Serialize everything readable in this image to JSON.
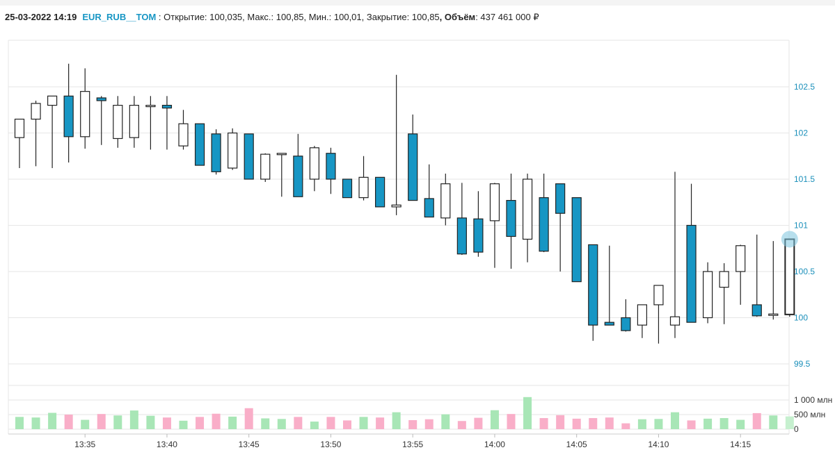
{
  "header": {
    "datetime": "25-03-2022 14:19",
    "symbol": "EUR_RUB__TOM",
    "sep": " : ",
    "open_label": "Открытие: ",
    "open": "100,035",
    "high_label": ", Макс.: ",
    "high": "100,85",
    "low_label": ", Мин.: ",
    "low": "100,01",
    "close_label": ", Закрытие: ",
    "close": "100,85",
    "volume_label": ", Объём",
    "volume_sep": ": ",
    "volume": "437 461 000 ₽"
  },
  "colors": {
    "bear_fill": "#1796c4",
    "bull_fill": "#ffffff",
    "candle_stroke": "#222222",
    "vol_up": "#a8e6b6",
    "vol_down": "#f9aec8",
    "vol_last": "#c6f0cf",
    "grid": "#e6e6e6",
    "axis_text": "#1a8fba",
    "highlight": "#7cc4de"
  },
  "chart_data": {
    "type": "candlestick",
    "y_ticks": [
      "102.5",
      "102",
      "101.5",
      "101",
      "100.5",
      "100",
      "99.5"
    ],
    "y_tick_values": [
      102.5,
      102,
      101.5,
      101,
      100.5,
      100,
      99.5
    ],
    "ylim": [
      99.25,
      103.0
    ],
    "x_ticks": [
      "13:35",
      "13:40",
      "13:45",
      "13:50",
      "13:55",
      "14:00",
      "14:05",
      "14:10",
      "14:15"
    ],
    "volume_ticks": [
      "1 000 млн",
      "500 млн",
      "0"
    ],
    "volume_tick_values": [
      1000,
      500,
      0
    ],
    "volume_ylim": [
      0,
      1200
    ],
    "time_start": "13:31",
    "candles": [
      {
        "o": 101.95,
        "h": 102.15,
        "l": 101.62,
        "c": 102.15,
        "v": 420,
        "up": true
      },
      {
        "o": 102.15,
        "h": 102.35,
        "l": 101.64,
        "c": 102.32,
        "v": 400,
        "up": true
      },
      {
        "o": 102.3,
        "h": 102.4,
        "l": 101.62,
        "c": 102.4,
        "v": 560,
        "up": true
      },
      {
        "o": 102.4,
        "h": 102.75,
        "l": 101.68,
        "c": 101.96,
        "v": 500,
        "up": false
      },
      {
        "o": 101.96,
        "h": 102.7,
        "l": 101.83,
        "c": 102.45,
        "v": 320,
        "up": true
      },
      {
        "o": 102.38,
        "h": 102.4,
        "l": 101.87,
        "c": 102.35,
        "v": 520,
        "up": false
      },
      {
        "o": 101.94,
        "h": 102.4,
        "l": 101.84,
        "c": 102.3,
        "v": 470,
        "up": true
      },
      {
        "o": 101.95,
        "h": 102.4,
        "l": 101.84,
        "c": 102.3,
        "v": 640,
        "up": true
      },
      {
        "o": 102.3,
        "h": 102.4,
        "l": 101.82,
        "c": 102.3,
        "v": 460,
        "up": true
      },
      {
        "o": 102.3,
        "h": 102.4,
        "l": 101.82,
        "c": 102.27,
        "v": 400,
        "up": false
      },
      {
        "o": 101.86,
        "h": 102.25,
        "l": 101.82,
        "c": 102.1,
        "v": 290,
        "up": true
      },
      {
        "o": 102.1,
        "h": 102.1,
        "l": 101.65,
        "c": 101.65,
        "v": 420,
        "up": false
      },
      {
        "o": 101.99,
        "h": 102.04,
        "l": 101.55,
        "c": 101.58,
        "v": 530,
        "up": false
      },
      {
        "o": 101.62,
        "h": 102.05,
        "l": 101.6,
        "c": 102.0,
        "v": 430,
        "up": true
      },
      {
        "o": 101.99,
        "h": 101.99,
        "l": 101.5,
        "c": 101.5,
        "v": 720,
        "up": false
      },
      {
        "o": 101.5,
        "h": 101.78,
        "l": 101.47,
        "c": 101.77,
        "v": 370,
        "up": true
      },
      {
        "o": 101.78,
        "h": 101.78,
        "l": 101.31,
        "c": 101.77,
        "v": 350,
        "up": true
      },
      {
        "o": 101.75,
        "h": 101.99,
        "l": 101.31,
        "c": 101.31,
        "v": 420,
        "up": false
      },
      {
        "o": 101.5,
        "h": 101.86,
        "l": 101.37,
        "c": 101.84,
        "v": 260,
        "up": true
      },
      {
        "o": 101.78,
        "h": 101.84,
        "l": 101.34,
        "c": 101.5,
        "v": 420,
        "up": false
      },
      {
        "o": 101.5,
        "h": 101.5,
        "l": 101.3,
        "c": 101.3,
        "v": 300,
        "up": false
      },
      {
        "o": 101.3,
        "h": 101.75,
        "l": 101.27,
        "c": 101.52,
        "v": 420,
        "up": true
      },
      {
        "o": 101.52,
        "h": 101.52,
        "l": 101.2,
        "c": 101.2,
        "v": 400,
        "up": false
      },
      {
        "o": 101.2,
        "h": 102.63,
        "l": 101.11,
        "c": 101.22,
        "v": 580,
        "up": true
      },
      {
        "o": 101.99,
        "h": 102.2,
        "l": 101.27,
        "c": 101.27,
        "v": 310,
        "up": false
      },
      {
        "o": 101.29,
        "h": 101.66,
        "l": 101.09,
        "c": 101.09,
        "v": 340,
        "up": false
      },
      {
        "o": 101.08,
        "h": 101.56,
        "l": 101.0,
        "c": 101.45,
        "v": 510,
        "up": true
      },
      {
        "o": 101.08,
        "h": 101.46,
        "l": 100.68,
        "c": 100.69,
        "v": 280,
        "up": false
      },
      {
        "o": 101.07,
        "h": 101.37,
        "l": 100.66,
        "c": 100.71,
        "v": 390,
        "up": false
      },
      {
        "o": 101.05,
        "h": 101.46,
        "l": 100.54,
        "c": 101.45,
        "v": 650,
        "up": true
      },
      {
        "o": 101.27,
        "h": 101.56,
        "l": 100.53,
        "c": 100.88,
        "v": 520,
        "up": false
      },
      {
        "o": 100.85,
        "h": 101.56,
        "l": 100.6,
        "c": 101.5,
        "v": 1100,
        "up": true
      },
      {
        "o": 101.3,
        "h": 101.56,
        "l": 100.71,
        "c": 100.72,
        "v": 380,
        "up": false
      },
      {
        "o": 101.45,
        "h": 101.45,
        "l": 100.5,
        "c": 101.13,
        "v": 480,
        "up": false
      },
      {
        "o": 101.3,
        "h": 101.3,
        "l": 100.39,
        "c": 100.39,
        "v": 360,
        "up": false
      },
      {
        "o": 100.79,
        "h": 100.79,
        "l": 99.75,
        "c": 99.92,
        "v": 380,
        "up": false
      },
      {
        "o": 99.95,
        "h": 100.78,
        "l": 99.92,
        "c": 99.92,
        "v": 400,
        "up": false
      },
      {
        "o": 100.0,
        "h": 100.2,
        "l": 99.85,
        "c": 99.86,
        "v": 200,
        "up": false
      },
      {
        "o": 99.92,
        "h": 100.14,
        "l": 99.78,
        "c": 100.14,
        "v": 340,
        "up": true
      },
      {
        "o": 100.14,
        "h": 100.35,
        "l": 99.72,
        "c": 100.35,
        "v": 350,
        "up": true
      },
      {
        "o": 99.92,
        "h": 101.58,
        "l": 99.78,
        "c": 100.01,
        "v": 580,
        "up": true
      },
      {
        "o": 101.0,
        "h": 101.45,
        "l": 99.95,
        "c": 99.95,
        "v": 300,
        "up": false
      },
      {
        "o": 100.0,
        "h": 100.6,
        "l": 99.94,
        "c": 100.5,
        "v": 360,
        "up": true
      },
      {
        "o": 100.33,
        "h": 100.59,
        "l": 99.93,
        "c": 100.5,
        "v": 380,
        "up": true
      },
      {
        "o": 100.5,
        "h": 100.79,
        "l": 100.14,
        "c": 100.78,
        "v": 320,
        "up": true
      },
      {
        "o": 100.14,
        "h": 100.9,
        "l": 100.01,
        "c": 100.02,
        "v": 550,
        "up": false
      },
      {
        "o": 100.04,
        "h": 100.83,
        "l": 99.98,
        "c": 100.04,
        "v": 470,
        "up": true
      },
      {
        "o": 100.035,
        "h": 100.85,
        "l": 100.01,
        "c": 100.85,
        "v": 437,
        "up": true
      }
    ]
  }
}
